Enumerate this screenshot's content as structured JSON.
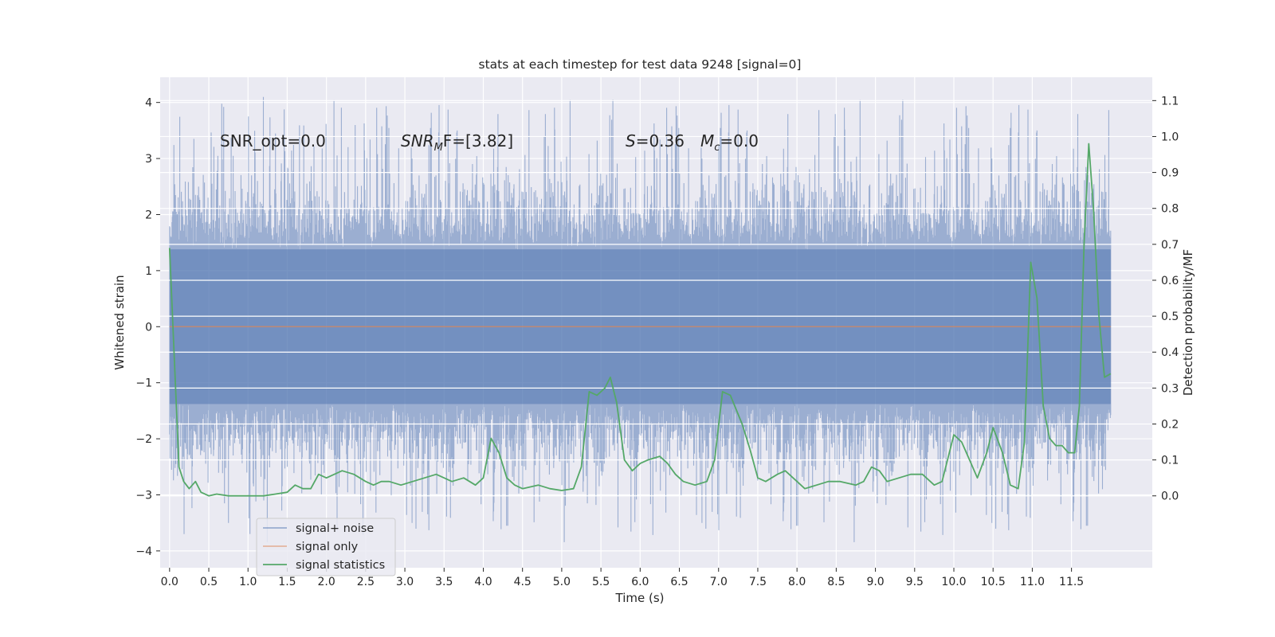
{
  "chart_data": {
    "type": "line",
    "title": "stats at each timestep for test data 9248 [signal=0]",
    "xlabel": "Time (s)",
    "ylabel": "Whitened strain",
    "y2label": "Detection probability/MF",
    "xlim": [
      -0.12,
      12.53
    ],
    "ylim": [
      -4.3,
      4.45
    ],
    "y2lim": [
      -0.2,
      1.165
    ],
    "x_ticks": [
      0.0,
      0.5,
      1.0,
      1.5,
      2.0,
      2.5,
      3.0,
      3.5,
      4.0,
      4.5,
      5.0,
      5.5,
      6.0,
      6.5,
      7.0,
      7.5,
      8.0,
      8.5,
      9.0,
      9.5,
      10.0,
      10.5,
      11.0,
      11.5
    ],
    "x_tick_labels": [
      "0.0",
      "0.5",
      "1.0",
      "1.5",
      "2.0",
      "2.5",
      "3.0",
      "3.5",
      "4.0",
      "4.5",
      "5.0",
      "5.5",
      "6.0",
      "6.5",
      "7.0",
      "7.5",
      "8.0",
      "8.5",
      "9.0",
      "9.5",
      "10.0",
      "10.5",
      "11.0",
      "11.5"
    ],
    "y_ticks": [
      -4,
      -3,
      -2,
      -1,
      0,
      1,
      2,
      3,
      4
    ],
    "y_tick_labels": [
      "−4",
      "−3",
      "−2",
      "−1",
      "0",
      "1",
      "2",
      "3",
      "4"
    ],
    "y2_ticks": [
      0.0,
      0.1,
      0.2,
      0.3,
      0.4,
      0.5,
      0.6,
      0.7,
      0.8,
      0.9,
      1.0,
      1.1
    ],
    "y2_tick_labels": [
      "0.0",
      "0.1",
      "0.2",
      "0.3",
      "0.4",
      "0.5",
      "0.6",
      "0.7",
      "0.8",
      "0.9",
      "1.0",
      "1.1"
    ],
    "grid": true,
    "legend": {
      "position": "lower-left",
      "entries": [
        "signal+ noise",
        "signal only",
        "signal statistics"
      ]
    },
    "annotations": {
      "snr_opt": "SNR_opt=0.0",
      "snr_mf_main": "SNR",
      "snr_mf_sub": "M",
      "snr_mf_rest": "F=[3.82]",
      "s_main": "S",
      "s_rest": "=0.36",
      "mc_main": "M",
      "mc_sub": "c",
      "mc_rest": "=0.0"
    },
    "series": [
      {
        "name": "signal+ noise",
        "color": "#4c72b0",
        "opacity": 0.5,
        "x_range": [
          0.0,
          12.0
        ],
        "core_amplitude": 1.38,
        "peak_min": -3.87,
        "peak_max": 4.1
      },
      {
        "name": "signal only",
        "color": "#dd8452",
        "x": [
          0.0,
          12.0
        ],
        "y": [
          0.0,
          0.0
        ]
      },
      {
        "name": "signal statistics",
        "color": "#55a868",
        "axis": "right",
        "points": [
          [
            0.0,
            0.69
          ],
          [
            0.12,
            0.08
          ],
          [
            0.18,
            0.04
          ],
          [
            0.25,
            0.02
          ],
          [
            0.33,
            0.04
          ],
          [
            0.4,
            0.01
          ],
          [
            0.5,
            0.0
          ],
          [
            0.6,
            0.005
          ],
          [
            0.75,
            0.0
          ],
          [
            0.9,
            0.0
          ],
          [
            1.05,
            0.0
          ],
          [
            1.2,
            0.0
          ],
          [
            1.35,
            0.005
          ],
          [
            1.5,
            0.01
          ],
          [
            1.6,
            0.03
          ],
          [
            1.7,
            0.02
          ],
          [
            1.8,
            0.02
          ],
          [
            1.9,
            0.06
          ],
          [
            2.0,
            0.05
          ],
          [
            2.1,
            0.06
          ],
          [
            2.2,
            0.07
          ],
          [
            2.35,
            0.06
          ],
          [
            2.5,
            0.04
          ],
          [
            2.6,
            0.03
          ],
          [
            2.7,
            0.04
          ],
          [
            2.8,
            0.04
          ],
          [
            2.95,
            0.03
          ],
          [
            3.1,
            0.04
          ],
          [
            3.25,
            0.05
          ],
          [
            3.4,
            0.06
          ],
          [
            3.5,
            0.05
          ],
          [
            3.6,
            0.04
          ],
          [
            3.75,
            0.05
          ],
          [
            3.9,
            0.03
          ],
          [
            4.0,
            0.05
          ],
          [
            4.1,
            0.16
          ],
          [
            4.2,
            0.12
          ],
          [
            4.3,
            0.05
          ],
          [
            4.4,
            0.03
          ],
          [
            4.5,
            0.02
          ],
          [
            4.7,
            0.03
          ],
          [
            4.85,
            0.02
          ],
          [
            5.0,
            0.015
          ],
          [
            5.15,
            0.02
          ],
          [
            5.25,
            0.08
          ],
          [
            5.35,
            0.29
          ],
          [
            5.45,
            0.28
          ],
          [
            5.55,
            0.3
          ],
          [
            5.62,
            0.33
          ],
          [
            5.7,
            0.26
          ],
          [
            5.8,
            0.1
          ],
          [
            5.9,
            0.07
          ],
          [
            6.0,
            0.09
          ],
          [
            6.1,
            0.1
          ],
          [
            6.25,
            0.11
          ],
          [
            6.35,
            0.09
          ],
          [
            6.45,
            0.06
          ],
          [
            6.55,
            0.04
          ],
          [
            6.7,
            0.03
          ],
          [
            6.85,
            0.04
          ],
          [
            6.95,
            0.1
          ],
          [
            7.05,
            0.29
          ],
          [
            7.15,
            0.28
          ],
          [
            7.3,
            0.2
          ],
          [
            7.4,
            0.13
          ],
          [
            7.5,
            0.05
          ],
          [
            7.6,
            0.04
          ],
          [
            7.75,
            0.06
          ],
          [
            7.85,
            0.07
          ],
          [
            8.0,
            0.04
          ],
          [
            8.1,
            0.02
          ],
          [
            8.25,
            0.03
          ],
          [
            8.4,
            0.04
          ],
          [
            8.55,
            0.04
          ],
          [
            8.75,
            0.03
          ],
          [
            8.85,
            0.04
          ],
          [
            8.95,
            0.08
          ],
          [
            9.05,
            0.07
          ],
          [
            9.15,
            0.04
          ],
          [
            9.3,
            0.05
          ],
          [
            9.45,
            0.06
          ],
          [
            9.6,
            0.06
          ],
          [
            9.75,
            0.03
          ],
          [
            9.85,
            0.04
          ],
          [
            10.0,
            0.17
          ],
          [
            10.1,
            0.15
          ],
          [
            10.2,
            0.1
          ],
          [
            10.3,
            0.05
          ],
          [
            10.42,
            0.12
          ],
          [
            10.5,
            0.19
          ],
          [
            10.62,
            0.12
          ],
          [
            10.72,
            0.03
          ],
          [
            10.82,
            0.02
          ],
          [
            10.9,
            0.15
          ],
          [
            10.98,
            0.65
          ],
          [
            11.06,
            0.55
          ],
          [
            11.14,
            0.25
          ],
          [
            11.22,
            0.16
          ],
          [
            11.3,
            0.14
          ],
          [
            11.38,
            0.14
          ],
          [
            11.46,
            0.12
          ],
          [
            11.54,
            0.12
          ],
          [
            11.6,
            0.25
          ],
          [
            11.66,
            0.7
          ],
          [
            11.72,
            0.98
          ],
          [
            11.78,
            0.8
          ],
          [
            11.85,
            0.5
          ],
          [
            11.92,
            0.33
          ],
          [
            12.0,
            0.34
          ]
        ]
      }
    ]
  }
}
